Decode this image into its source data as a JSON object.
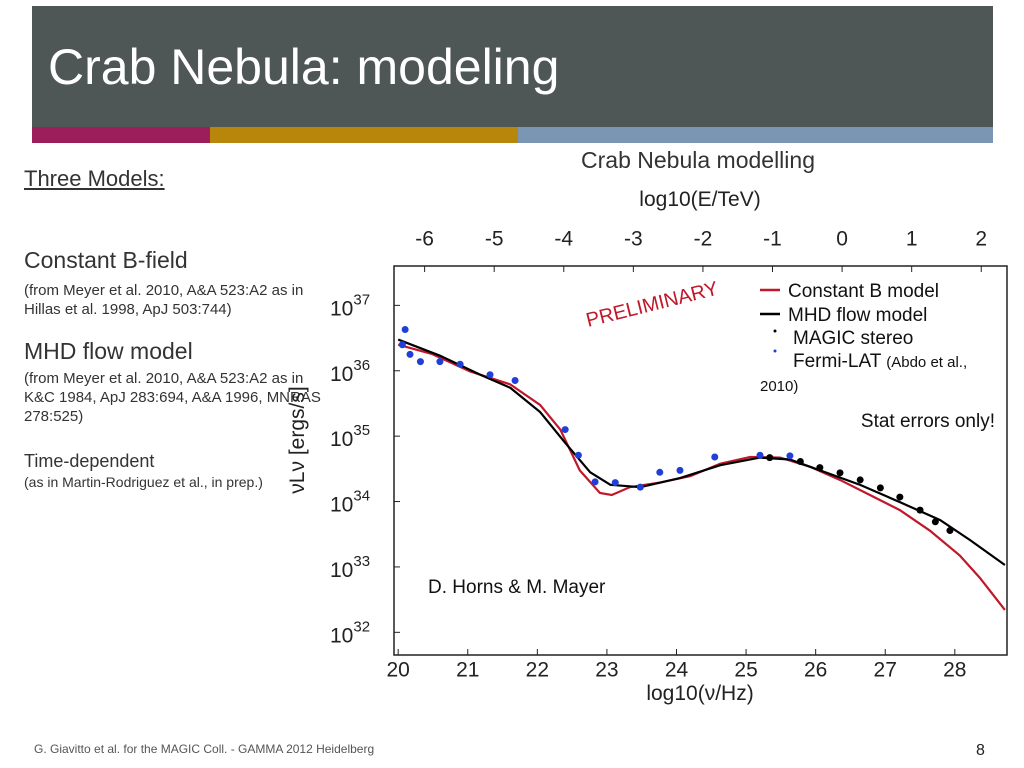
{
  "slide": {
    "title": "Crab Nebula: modeling",
    "heading": "Three Models:",
    "models": [
      {
        "name": "Constant B-field",
        "ref": "(from Meyer et al. 2010, A&A 523:A2 as in Hillas et al. 1998, ApJ 503:744)"
      },
      {
        "name": "MHD flow model",
        "ref": "(from Meyer et al. 2010, A&A 523:A2 as in K&C 1984, ApJ 283:694, A&A 1996, MNRAS 278:525)"
      },
      {
        "name": "Time-dependent",
        "ref": "(as in Martin-Rodriguez et al., in prep.)"
      }
    ],
    "footer": "G. Giavitto et al. for the MAGIC Coll. - GAMMA 2012 Heidelberg",
    "page_number": "8"
  },
  "chart_data": {
    "type": "line",
    "title": "Crab Nebula modelling",
    "x_label": "log10(ν/Hz)",
    "x2_label": "log10(E/TeV)",
    "y_label": "νLν [ergs/s]",
    "xlim": [
      19.94,
      28.75
    ],
    "xticks": [
      20,
      21,
      22,
      23,
      24,
      25,
      26,
      27,
      28
    ],
    "x2lim": [
      -6.44,
      2.37
    ],
    "x2ticks": [
      -6,
      -5,
      -4,
      -3,
      -2,
      -1,
      0,
      1,
      2
    ],
    "ylim": [
      4.5e+31,
      4e+37
    ],
    "y_log": true,
    "yticks": [
      {
        "value": 1e+32,
        "label": "10",
        "exponent": "32"
      },
      {
        "value": 1e+33,
        "label": "10",
        "exponent": "33"
      },
      {
        "value": 1e+34,
        "label": "10",
        "exponent": "34"
      },
      {
        "value": 1e+35,
        "label": "10",
        "exponent": "35"
      },
      {
        "value": 1e+36,
        "label": "10",
        "exponent": "36"
      },
      {
        "value": 1e+37,
        "label": "10",
        "exponent": "37"
      }
    ],
    "series": [
      {
        "name": "Constant B model",
        "color": "#c0182a",
        "mark": "line",
        "x": [
          20,
          20.49,
          21.03,
          21.61,
          22.04,
          22.33,
          22.61,
          22.9,
          23.07,
          23.33,
          23.76,
          24.2,
          24.63,
          25.06,
          25.49,
          25.92,
          26.35,
          26.78,
          27.21,
          27.64,
          28.07,
          28.36,
          28.72
        ],
        "values": [
          2.5e+36,
          1.8e+36,
          9.8e+35,
          6.2e+35,
          3e+35,
          1.26e+35,
          3e+34,
          1.35e+34,
          1.26e+34,
          1.66e+34,
          1.95e+34,
          2.45e+34,
          3.8e+34,
          4.8e+34,
          4.7e+34,
          3.4e+34,
          2.14e+34,
          1.26e+34,
          7.4e+33,
          3.6e+33,
          1.5e+33,
          6.8e+32,
          2.2e+32
        ]
      },
      {
        "name": "MHD flow model",
        "color": "#000000",
        "mark": "line",
        "x": [
          20,
          20.6,
          21.18,
          21.61,
          22.04,
          22.4,
          22.76,
          23.05,
          23.48,
          24.05,
          24.63,
          25.2,
          25.63,
          26.06,
          26.64,
          27.21,
          27.79,
          28.22,
          28.72
        ],
        "values": [
          3e+36,
          1.7e+36,
          8.7e+35,
          5.5e+35,
          2.34e+35,
          7.9e+34,
          2.8e+34,
          1.8e+34,
          1.66e+34,
          2.29e+34,
          3.6e+34,
          4.7e+34,
          4.4e+34,
          3e+34,
          1.8e+34,
          9.8e+33,
          5.2e+33,
          2.57e+33,
          1.07e+33
        ]
      },
      {
        "name": "MAGIC stereo",
        "color": "#000000",
        "mark": "point",
        "x": [
          25.34,
          25.78,
          26.06,
          26.35,
          26.64,
          26.93,
          27.21,
          27.5,
          27.72,
          27.93
        ],
        "values": [
          4.7e+34,
          4.1e+34,
          3.3e+34,
          2.75e+34,
          2.14e+34,
          1.62e+34,
          1.17e+34,
          7.4e+33,
          4.9e+33,
          3.6e+33
        ]
      },
      {
        "name": "Fermi-LAT",
        "color": "#1f3fd8",
        "mark": "point",
        "x": [
          20.1,
          20.06,
          20.17,
          20.32,
          20.6,
          20.89,
          21.32,
          21.68,
          22.4,
          22.59,
          22.83,
          23.12,
          23.48,
          23.76,
          24.05,
          24.55,
          25.2,
          25.63
        ],
        "values": [
          4.27e+36,
          2.5e+36,
          1.78e+36,
          1.38e+36,
          1.38e+36,
          1.26e+36,
          8.7e+35,
          7.1e+35,
          1.26e+35,
          5.1e+34,
          2e+34,
          1.95e+34,
          1.66e+34,
          2.8e+34,
          3e+34,
          4.8e+34,
          5.1e+34,
          5e+34
        ]
      }
    ],
    "legend_note": "(Abdo et al., 2010)",
    "annotations": [
      "PRELIMINARY",
      "Stat errors only!",
      "D. Horns & M. Mayer"
    ]
  }
}
